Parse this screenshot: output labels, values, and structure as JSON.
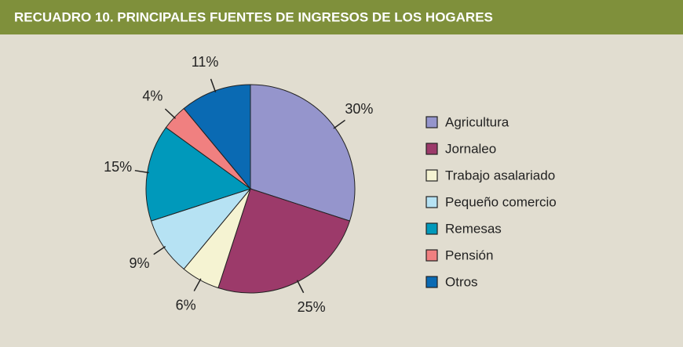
{
  "chart_data": {
    "type": "pie",
    "title": "RECUADRO 10. PRINCIPALES FUENTES DE INGRESOS DE LOS HOGARES",
    "categories": [
      "Agricultura",
      "Jornaleo",
      "Trabajo asalariado",
      "Pequeño comercio",
      "Remesas",
      "Pensión",
      "Otros"
    ],
    "values": [
      30,
      25,
      6,
      9,
      15,
      4,
      11
    ],
    "value_labels": [
      "30%",
      "25%",
      "6%",
      "9%",
      "15%",
      "4%",
      "11%"
    ],
    "colors": [
      "#9595cc",
      "#9c3a6a",
      "#f5f3d2",
      "#b6e2f3",
      "#0099bb",
      "#f08080",
      "#0a6ab3"
    ],
    "legend": "right"
  }
}
